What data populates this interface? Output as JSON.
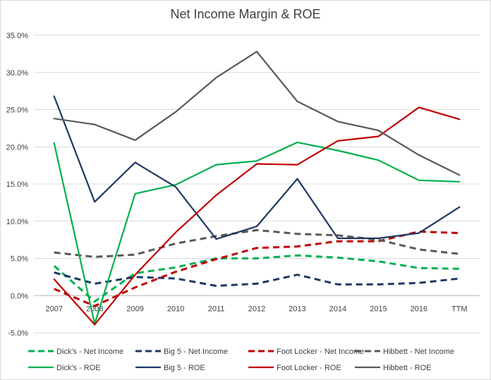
{
  "chart_data": {
    "type": "line",
    "title": "Net Income Margin & ROE",
    "xlabel": "",
    "ylabel": "",
    "x": [
      "2007",
      "2008",
      "2009",
      "2010",
      "2011",
      "2012",
      "2013",
      "2014",
      "2015",
      "2016",
      "TTM"
    ],
    "ylim": [
      -5.0,
      35.0
    ],
    "y_ticks": [
      "-5.0%",
      "0.0%",
      "5.0%",
      "10.0%",
      "15.0%",
      "20.0%",
      "25.0%",
      "30.0%",
      "35.0%"
    ],
    "y_tick_values": [
      -5,
      0,
      5,
      10,
      15,
      20,
      25,
      30,
      35
    ],
    "grid": "horizontal",
    "legend_position": "bottom",
    "series": [
      {
        "name": "Dick's - Net Income",
        "color": "#00b050",
        "dashed": true,
        "values": [
          4.0,
          -0.8,
          3.0,
          3.8,
          5.0,
          5.0,
          5.4,
          5.1,
          4.6,
          3.7,
          3.6
        ]
      },
      {
        "name": "Big 5 - Net Income",
        "color": "#1f3864",
        "dashed": true,
        "values": [
          3.1,
          1.6,
          2.5,
          2.3,
          1.3,
          1.6,
          2.8,
          1.5,
          1.5,
          1.7,
          2.3
        ]
      },
      {
        "name": "Foot Locker - Net Income",
        "color": "#c00000",
        "dashed": true,
        "values": [
          0.9,
          -1.4,
          1.1,
          3.2,
          4.9,
          6.4,
          6.6,
          7.3,
          7.3,
          8.6,
          8.4
        ]
      },
      {
        "name": "Hibbett - Net Income",
        "color": "#595959",
        "dashed": true,
        "values": [
          5.8,
          5.2,
          5.5,
          7.0,
          8.0,
          8.8,
          8.3,
          8.1,
          7.5,
          6.2,
          5.6
        ]
      },
      {
        "name": "Dick's - ROE",
        "color": "#00b050",
        "dashed": false,
        "values": [
          20.5,
          -3.8,
          13.7,
          14.9,
          17.6,
          18.1,
          20.6,
          19.5,
          18.2,
          15.5,
          15.3
        ]
      },
      {
        "name": "Big 5 - ROE",
        "color": "#1f3864",
        "dashed": false,
        "values": [
          26.8,
          12.6,
          17.9,
          14.6,
          7.6,
          9.3,
          15.7,
          7.7,
          7.7,
          8.4,
          11.9
        ]
      },
      {
        "name": "Foot Locker - ROE",
        "color": "#c00000",
        "dashed": false,
        "values": [
          2.2,
          -3.9,
          2.8,
          8.5,
          13.5,
          17.7,
          17.6,
          20.8,
          21.4,
          25.3,
          23.7
        ]
      },
      {
        "name": "Hibbett - ROE",
        "color": "#595959",
        "dashed": false,
        "values": [
          23.8,
          23.0,
          20.9,
          24.7,
          29.3,
          32.8,
          26.1,
          23.4,
          22.2,
          18.9,
          16.2
        ]
      }
    ]
  }
}
